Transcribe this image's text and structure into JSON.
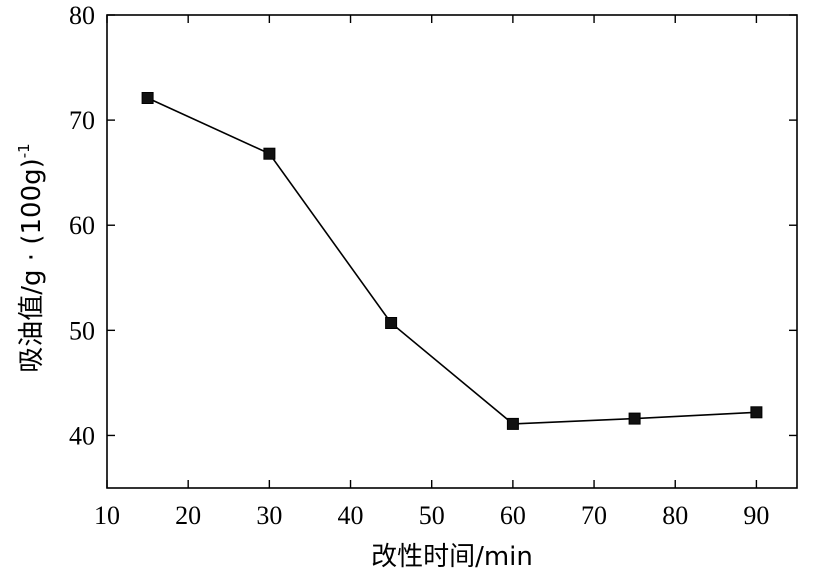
{
  "chart_data": {
    "type": "line",
    "xlabel": "改性时间/min",
    "ylabel": "吸油值/g · (100g)",
    "ylabel_superscript": "-1",
    "xlim": [
      10,
      95
    ],
    "ylim": [
      35,
      80
    ],
    "xticks": [
      10,
      20,
      30,
      40,
      50,
      60,
      70,
      80,
      90
    ],
    "yticks": [
      40,
      50,
      60,
      70,
      80
    ],
    "grid": false,
    "marker": "square",
    "series": [
      {
        "x": [
          15,
          30,
          45,
          60,
          75,
          90
        ],
        "values": [
          72.1,
          66.8,
          50.7,
          41.1,
          41.6,
          42.2
        ]
      }
    ]
  }
}
